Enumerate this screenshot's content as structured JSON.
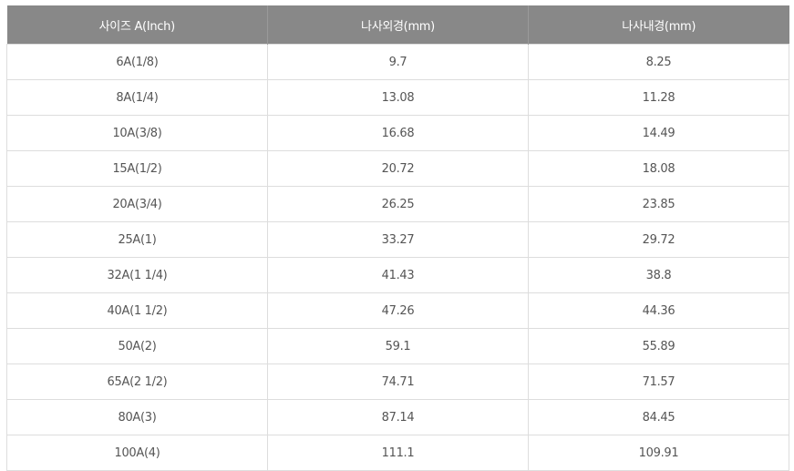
{
  "table": {
    "headers": [
      "사이즈 A(Inch)",
      "나사외경(mm)",
      "나사내경(mm)"
    ],
    "rows": [
      [
        "6A(1/8)",
        "9.7",
        "8.25"
      ],
      [
        "8A(1/4)",
        "13.08",
        "11.28"
      ],
      [
        "10A(3/8)",
        "16.68",
        "14.49"
      ],
      [
        "15A(1/2)",
        "20.72",
        "18.08"
      ],
      [
        "20A(3/4)",
        "26.25",
        "23.85"
      ],
      [
        "25A(1)",
        "33.27",
        "29.72"
      ],
      [
        "32A(1 1/4)",
        "41.43",
        "38.8"
      ],
      [
        "40A(1 1/2)",
        "47.26",
        "44.36"
      ],
      [
        "50A(2)",
        "59.1",
        "55.89"
      ],
      [
        "65A(2 1/2)",
        "74.71",
        "71.57"
      ],
      [
        "80A(3)",
        "87.14",
        "84.45"
      ],
      [
        "100A(4)",
        "111.1",
        "109.91"
      ]
    ],
    "colors": {
      "header_bg": "#888888",
      "header_text": "#ffffff",
      "border": "#dddddd",
      "cell_text": "#555555"
    }
  }
}
